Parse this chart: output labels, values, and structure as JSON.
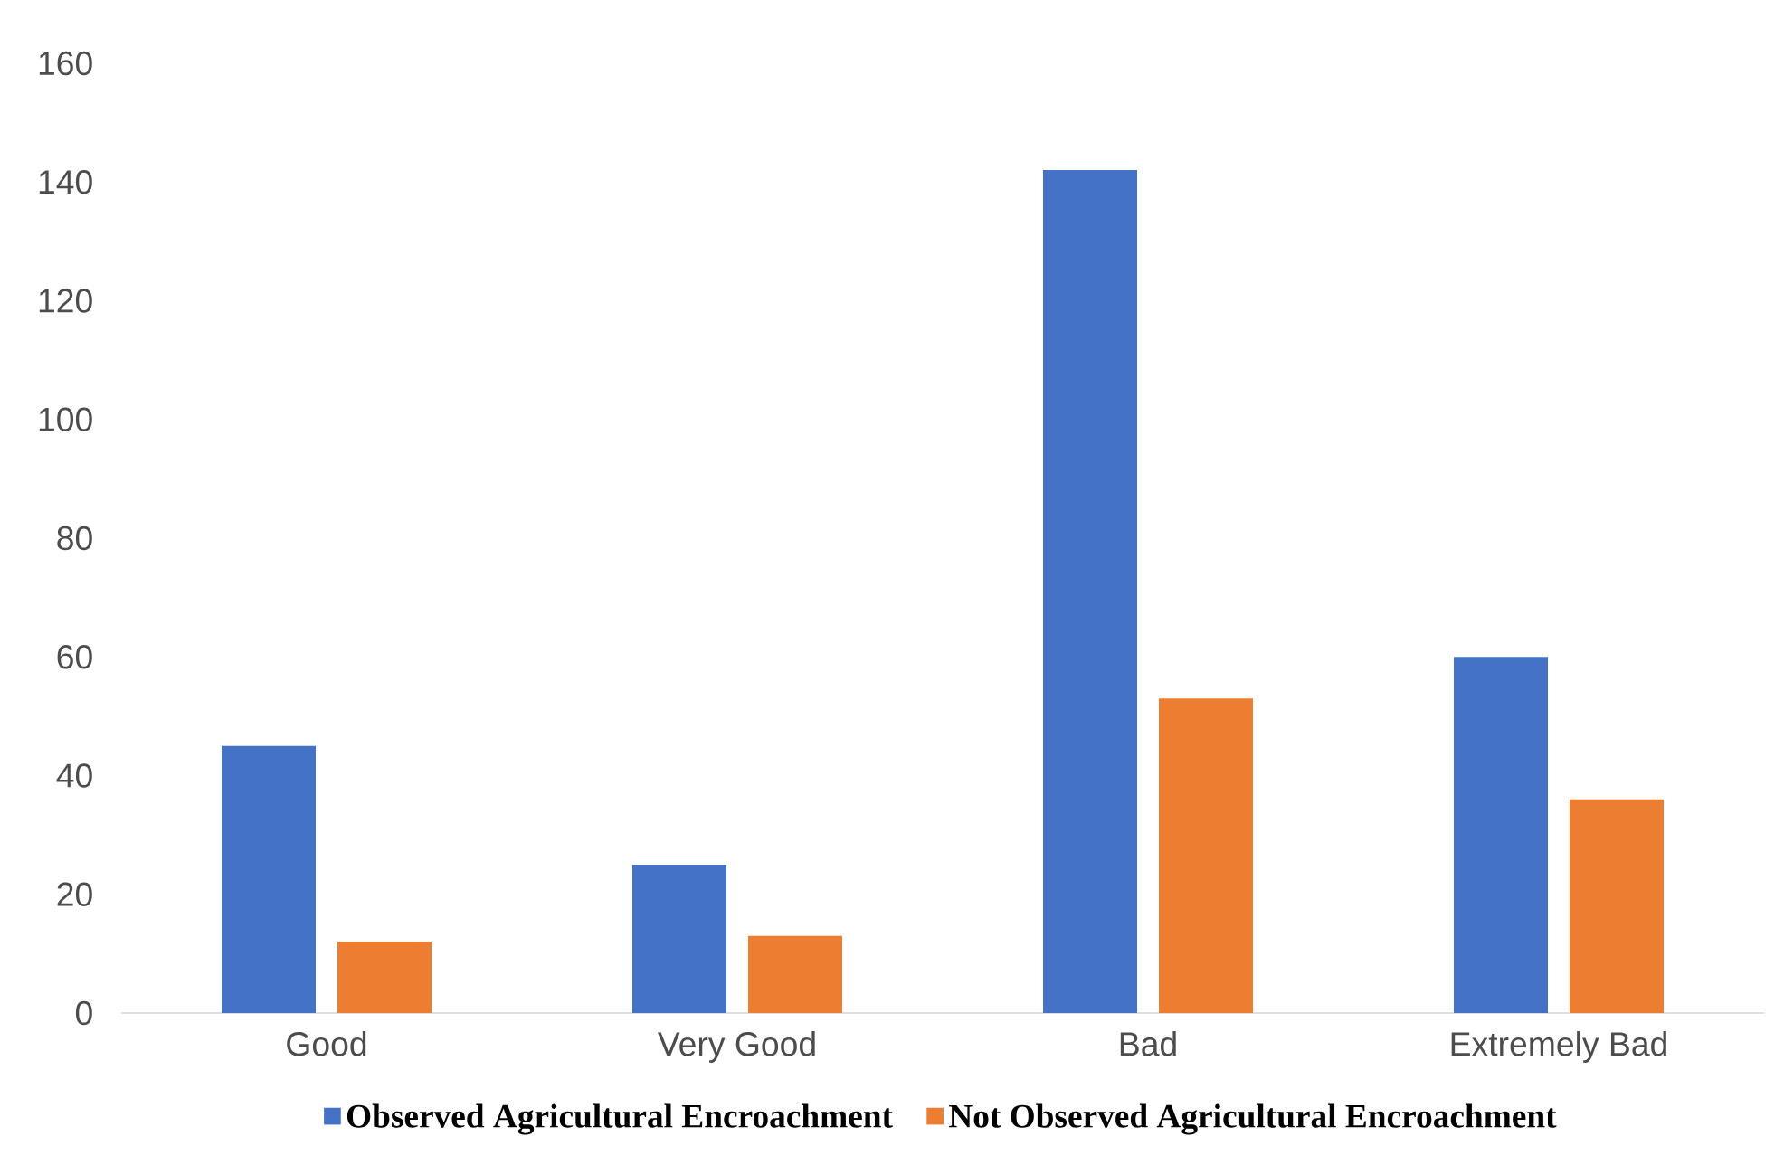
{
  "chart_data": {
    "type": "bar",
    "categories": [
      "Good",
      "Very Good",
      "Bad",
      "Extremely Bad"
    ],
    "series": [
      {
        "name": "Observed Agricultural Encroachment",
        "color": "#4472c4",
        "values": [
          45,
          25,
          142,
          60
        ]
      },
      {
        "name": "Not Observed Agricultural Encroachment",
        "color": "#ed7d31",
        "values": [
          12,
          13,
          53,
          36
        ]
      }
    ],
    "ylim": [
      0,
      160
    ],
    "yticks": [
      0,
      20,
      40,
      60,
      80,
      100,
      120,
      140,
      160
    ],
    "grid": false,
    "legend": "bottom"
  }
}
